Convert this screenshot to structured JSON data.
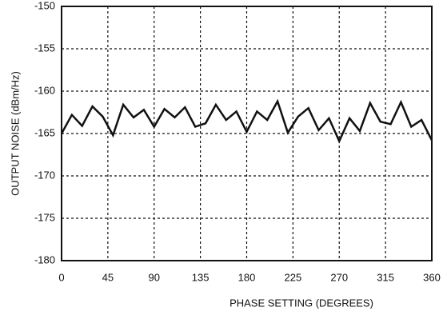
{
  "chart_data": {
    "type": "line",
    "x_label": "PHASE SETTING (DEGREES)",
    "y_label": "OUTPUT NOISE (dBm/Hz)",
    "x": [
      0,
      10,
      20,
      30,
      40,
      50,
      60,
      70,
      80,
      90,
      100,
      110,
      120,
      130,
      140,
      150,
      160,
      170,
      180,
      190,
      200,
      210,
      220,
      230,
      240,
      250,
      260,
      270,
      280,
      290,
      300,
      310,
      320,
      330,
      340,
      350,
      360
    ],
    "series": [
      {
        "color": "#111111",
        "values": [
          -165,
          -162.8,
          -164.1,
          -161.8,
          -163,
          -165.2,
          -161.6,
          -163.1,
          -162.2,
          -164.2,
          -162.1,
          -163.1,
          -161.9,
          -164.2,
          -163.8,
          -161.6,
          -163.4,
          -162.4,
          -164.8,
          -162.4,
          -163.4,
          -161.2,
          -164.9,
          -163,
          -162,
          -164.6,
          -163.2,
          -165.9,
          -163.2,
          -164.7,
          -161.4,
          -163.6,
          -163.9,
          -161.3,
          -164.2,
          -163.4,
          -165.8
        ]
      }
    ],
    "xlim": [
      0,
      360
    ],
    "xticks": [
      0,
      45,
      90,
      135,
      180,
      225,
      270,
      315,
      360
    ],
    "ylim": [
      -180,
      -150
    ],
    "yticks": [
      -180,
      -175,
      -170,
      -165,
      -160,
      -155,
      -150
    ],
    "grid": true
  }
}
